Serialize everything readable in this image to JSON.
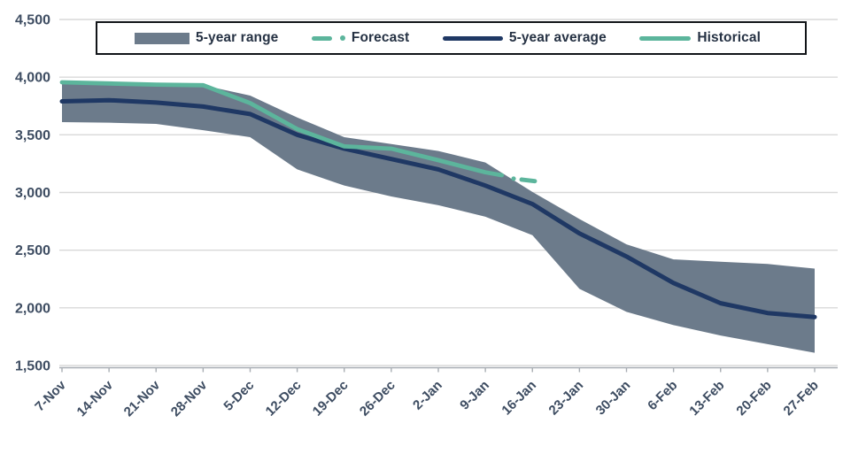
{
  "chart_data": {
    "type": "line",
    "title": "",
    "xlabel": "",
    "ylabel": "",
    "categories": [
      "7-Nov",
      "14-Nov",
      "21-Nov",
      "28-Nov",
      "5-Dec",
      "12-Dec",
      "19-Dec",
      "26-Dec",
      "2-Jan",
      "9-Jan",
      "16-Jan",
      "23-Jan",
      "30-Jan",
      "6-Feb",
      "13-Feb",
      "20-Feb",
      "27-Feb"
    ],
    "ylim": [
      1500,
      4500
    ],
    "y_ticks": [
      4500,
      4000,
      3500,
      3000,
      2500,
      2000,
      1500
    ],
    "y_tick_labels": [
      "4,500",
      "4,000",
      "3,500",
      "3,000",
      "2,500",
      "2,000",
      "1,500"
    ],
    "grid": true,
    "legend_position": "top",
    "series": [
      {
        "name": "5-year range",
        "type": "band",
        "color": "#6c7b8b",
        "top": [
          3950,
          3945,
          3935,
          3930,
          3840,
          3650,
          3480,
          3420,
          3360,
          3260,
          3005,
          2770,
          2550,
          2420,
          2400,
          2380,
          2340
        ],
        "bottom": [
          3610,
          3605,
          3595,
          3540,
          3480,
          3200,
          3060,
          2965,
          2890,
          2790,
          2630,
          2165,
          1965,
          1850,
          1760,
          1685,
          1610
        ]
      },
      {
        "name": "5-year average",
        "type": "line",
        "color": "#1f3864",
        "values": [
          3790,
          3800,
          3780,
          3745,
          3680,
          3500,
          3380,
          3290,
          3200,
          3060,
          2900,
          2645,
          2445,
          2215,
          2040,
          1955,
          1920
        ]
      },
      {
        "name": "Historical",
        "type": "line",
        "color": "#5cb59c",
        "values": [
          3955,
          3945,
          3935,
          3930,
          3775,
          3550,
          3400,
          3380,
          3280,
          3175,
          null,
          null,
          null,
          null,
          null,
          null,
          null
        ],
        "partial_end": {
          "x_index": 9.35,
          "value": 3150
        }
      },
      {
        "name": "Forecast",
        "type": "dashed",
        "color": "#5cb59c",
        "segment": {
          "x1": 9.6,
          "v1": 3120,
          "x2": 10.12,
          "v2": 3095
        }
      }
    ]
  },
  "legend": {
    "items": [
      {
        "id": "range",
        "label": "5-year range"
      },
      {
        "id": "forecast",
        "label": "Forecast"
      },
      {
        "id": "average",
        "label": "5-year average"
      },
      {
        "id": "historical",
        "label": "Historical"
      }
    ]
  },
  "colors": {
    "gridline": "#d9d9d9",
    "axis_line": "#a8adb3",
    "tick_label": "#3e4d62",
    "legend_text": "#263244",
    "band": "#6c7b8b",
    "average_line": "#1f3864",
    "teal_line": "#5cb59c",
    "background": "#ffffff"
  }
}
